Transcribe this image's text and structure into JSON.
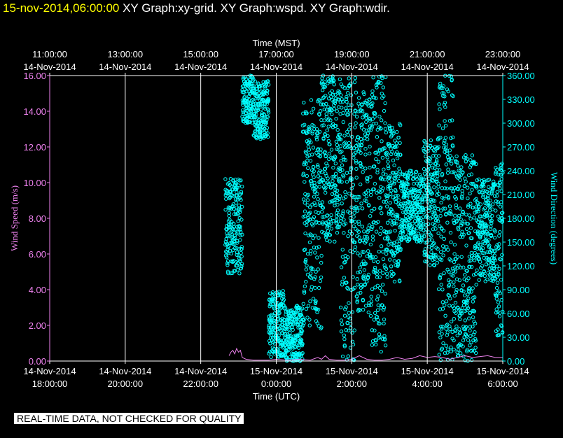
{
  "header": {
    "timestamp": "15-nov-2014,06:00:00",
    "graphs": "XY Graph:xy-grid.  XY Graph:wspd.  XY Graph:wdir."
  },
  "disclaimer": "REAL-TIME DATA, NOT CHECKED FOR QUALITY",
  "colors": {
    "wspd": "#ee82ee",
    "wdir": "#00ffff",
    "grid": "#ffffff",
    "background": "#000000"
  },
  "chart_data": {
    "type": "scatter",
    "top_axis": {
      "title": "Time (MST)",
      "ticks": [
        {
          "time": "11:00:00",
          "date": "14-Nov-2014"
        },
        {
          "time": "13:00:00",
          "date": "14-Nov-2014"
        },
        {
          "time": "15:00:00",
          "date": "14-Nov-2014"
        },
        {
          "time": "17:00:00",
          "date": "14-Nov-2014"
        },
        {
          "time": "19:00:00",
          "date": "14-Nov-2014"
        },
        {
          "time": "21:00:00",
          "date": "14-Nov-2014"
        },
        {
          "time": "23:00:00",
          "date": "14-Nov-2014"
        }
      ]
    },
    "bottom_axis": {
      "title": "Time (UTC)",
      "range_hours": [
        18,
        30
      ],
      "ticks": [
        {
          "date": "14-Nov-2014",
          "time": "18:00:00"
        },
        {
          "date": "14-Nov-2014",
          "time": "20:00:00"
        },
        {
          "date": "14-Nov-2014",
          "time": "22:00:00"
        },
        {
          "date": "15-Nov-2014",
          "time": "0:00:00"
        },
        {
          "date": "15-Nov-2014",
          "time": "2:00:00"
        },
        {
          "date": "15-Nov-2014",
          "time": "4:00:00"
        },
        {
          "date": "15-Nov-2014",
          "time": "6:00:00"
        }
      ]
    },
    "left_axis": {
      "title": "Wind Speed (m/s)",
      "ylim": [
        0,
        16
      ],
      "ticks": [
        "0.00",
        "2.00",
        "4.00",
        "6.00",
        "8.00",
        "10.00",
        "12.00",
        "14.00",
        "16.00"
      ]
    },
    "right_axis": {
      "title": "Wind Direction (degrees)",
      "ylim": [
        0,
        360
      ],
      "ticks": [
        "0.00",
        "30.00",
        "60.00",
        "90.00",
        "120.00",
        "150.00",
        "180.00",
        "210.00",
        "240.00",
        "270.00",
        "300.00",
        "330.00",
        "360.00"
      ]
    },
    "grid": true,
    "series": [
      {
        "key": "wspd",
        "axis": "left",
        "style": "line",
        "points": [
          [
            22.75,
            0.3
          ],
          [
            22.8,
            0.5
          ],
          [
            22.85,
            0.6
          ],
          [
            22.9,
            0.4
          ],
          [
            22.95,
            0.7
          ],
          [
            23.0,
            0.5
          ],
          [
            23.05,
            0.6
          ],
          [
            23.1,
            0.2
          ],
          [
            23.2,
            0.1
          ],
          [
            23.4,
            0.05
          ],
          [
            23.6,
            0.05
          ],
          [
            23.8,
            0.05
          ],
          [
            24.0,
            0.1
          ],
          [
            24.3,
            0.05
          ],
          [
            24.6,
            0.1
          ],
          [
            24.9,
            0.05
          ],
          [
            25.1,
            0.2
          ],
          [
            25.2,
            0.1
          ],
          [
            25.3,
            0.3
          ],
          [
            25.4,
            0.1
          ],
          [
            25.6,
            0.05
          ],
          [
            25.8,
            0.05
          ],
          [
            26.0,
            0.1
          ],
          [
            26.2,
            0.3
          ],
          [
            26.4,
            0.1
          ],
          [
            26.6,
            0.05
          ],
          [
            26.8,
            0.05
          ],
          [
            27.0,
            0.1
          ],
          [
            27.2,
            0.2
          ],
          [
            27.4,
            0.1
          ],
          [
            27.6,
            0.15
          ],
          [
            27.8,
            0.3
          ],
          [
            28.0,
            0.2
          ],
          [
            28.2,
            0.25
          ],
          [
            28.4,
            0.2
          ],
          [
            28.6,
            0.1
          ],
          [
            28.8,
            0.2
          ],
          [
            29.0,
            0.3
          ],
          [
            29.2,
            0.2
          ],
          [
            29.4,
            0.25
          ],
          [
            29.6,
            0.3
          ],
          [
            29.8,
            0.2
          ],
          [
            30.0,
            0.2
          ]
        ]
      },
      {
        "key": "wdir",
        "axis": "right",
        "style": "circles",
        "segments": [
          {
            "x": [
              22.65,
              23.1
            ],
            "y": [
              110,
              230
            ]
          },
          {
            "x": [
              23.1,
              23.4
            ],
            "y": [
              300,
              360
            ]
          },
          {
            "x": [
              23.4,
              23.8
            ],
            "y": [
              280,
              355
            ]
          },
          {
            "x": [
              23.8,
              24.2
            ],
            "y": [
              5,
              90
            ]
          },
          {
            "x": [
              24.2,
              24.7
            ],
            "y": [
              0,
              70
            ]
          },
          {
            "x": [
              24.7,
              25.2
            ],
            "y": [
              40,
              330
            ]
          },
          {
            "x": [
              25.2,
              25.7
            ],
            "y": [
              150,
              360
            ]
          },
          {
            "x": [
              25.7,
              26.1
            ],
            "y": [
              0,
              360
            ]
          },
          {
            "x": [
              26.1,
              26.5
            ],
            "y": [
              60,
              340
            ]
          },
          {
            "x": [
              26.5,
              26.9
            ],
            "y": [
              10,
              360
            ]
          },
          {
            "x": [
              26.9,
              27.3
            ],
            "y": [
              100,
              300
            ]
          },
          {
            "x": [
              27.3,
              27.9
            ],
            "y": [
              150,
              240
            ]
          },
          {
            "x": [
              27.9,
              28.3
            ],
            "y": [
              120,
              280
            ]
          },
          {
            "x": [
              28.3,
              28.7
            ],
            "y": [
              0,
              360
            ]
          },
          {
            "x": [
              28.7,
              29.3
            ],
            "y": [
              0,
              260
            ]
          },
          {
            "x": [
              29.3,
              29.8
            ],
            "y": [
              100,
              230
            ]
          },
          {
            "x": [
              29.8,
              30.0
            ],
            "y": [
              30,
              250
            ]
          }
        ]
      }
    ]
  }
}
